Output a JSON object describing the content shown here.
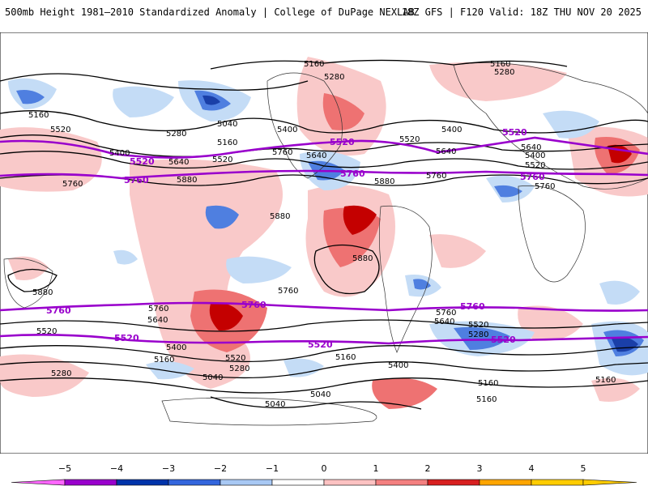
{
  "header": {
    "left_title": "500mb Height 1981–2010 Standardized Anomaly | College of DuPage NEXLAB",
    "right_title": "18Z GFS | F120 Valid: 18Z THU NOV 20 2025"
  },
  "contour_labels": {
    "c5160": "5160",
    "c5280": "5280",
    "c5040": "5040",
    "c5400": "5400",
    "c5520": "5520",
    "c5640": "5640",
    "c5760": "5760",
    "c5880": "5880"
  },
  "colorbar": {
    "ticks": [
      "−5",
      "−4",
      "−3",
      "−2",
      "−1",
      "0",
      "1",
      "2",
      "3",
      "4",
      "5"
    ],
    "colors": [
      "#ff66ff",
      "#9900cc",
      "#0033aa",
      "#3366dd",
      "#a8c8f4",
      "#ffffff",
      "#fcc2c2",
      "#f48080",
      "#d82020",
      "#ffa500",
      "#ffcc00"
    ]
  },
  "colors": {
    "highlight_contour": "#9900cc",
    "contour": "#000000",
    "positive_light": "#f9c9c9",
    "positive_mid": "#ee7272",
    "positive_strong": "#c40000",
    "negative_light": "#c4dcf6",
    "negative_mid": "#4f7fe0",
    "negative_strong": "#1a3fa8"
  }
}
